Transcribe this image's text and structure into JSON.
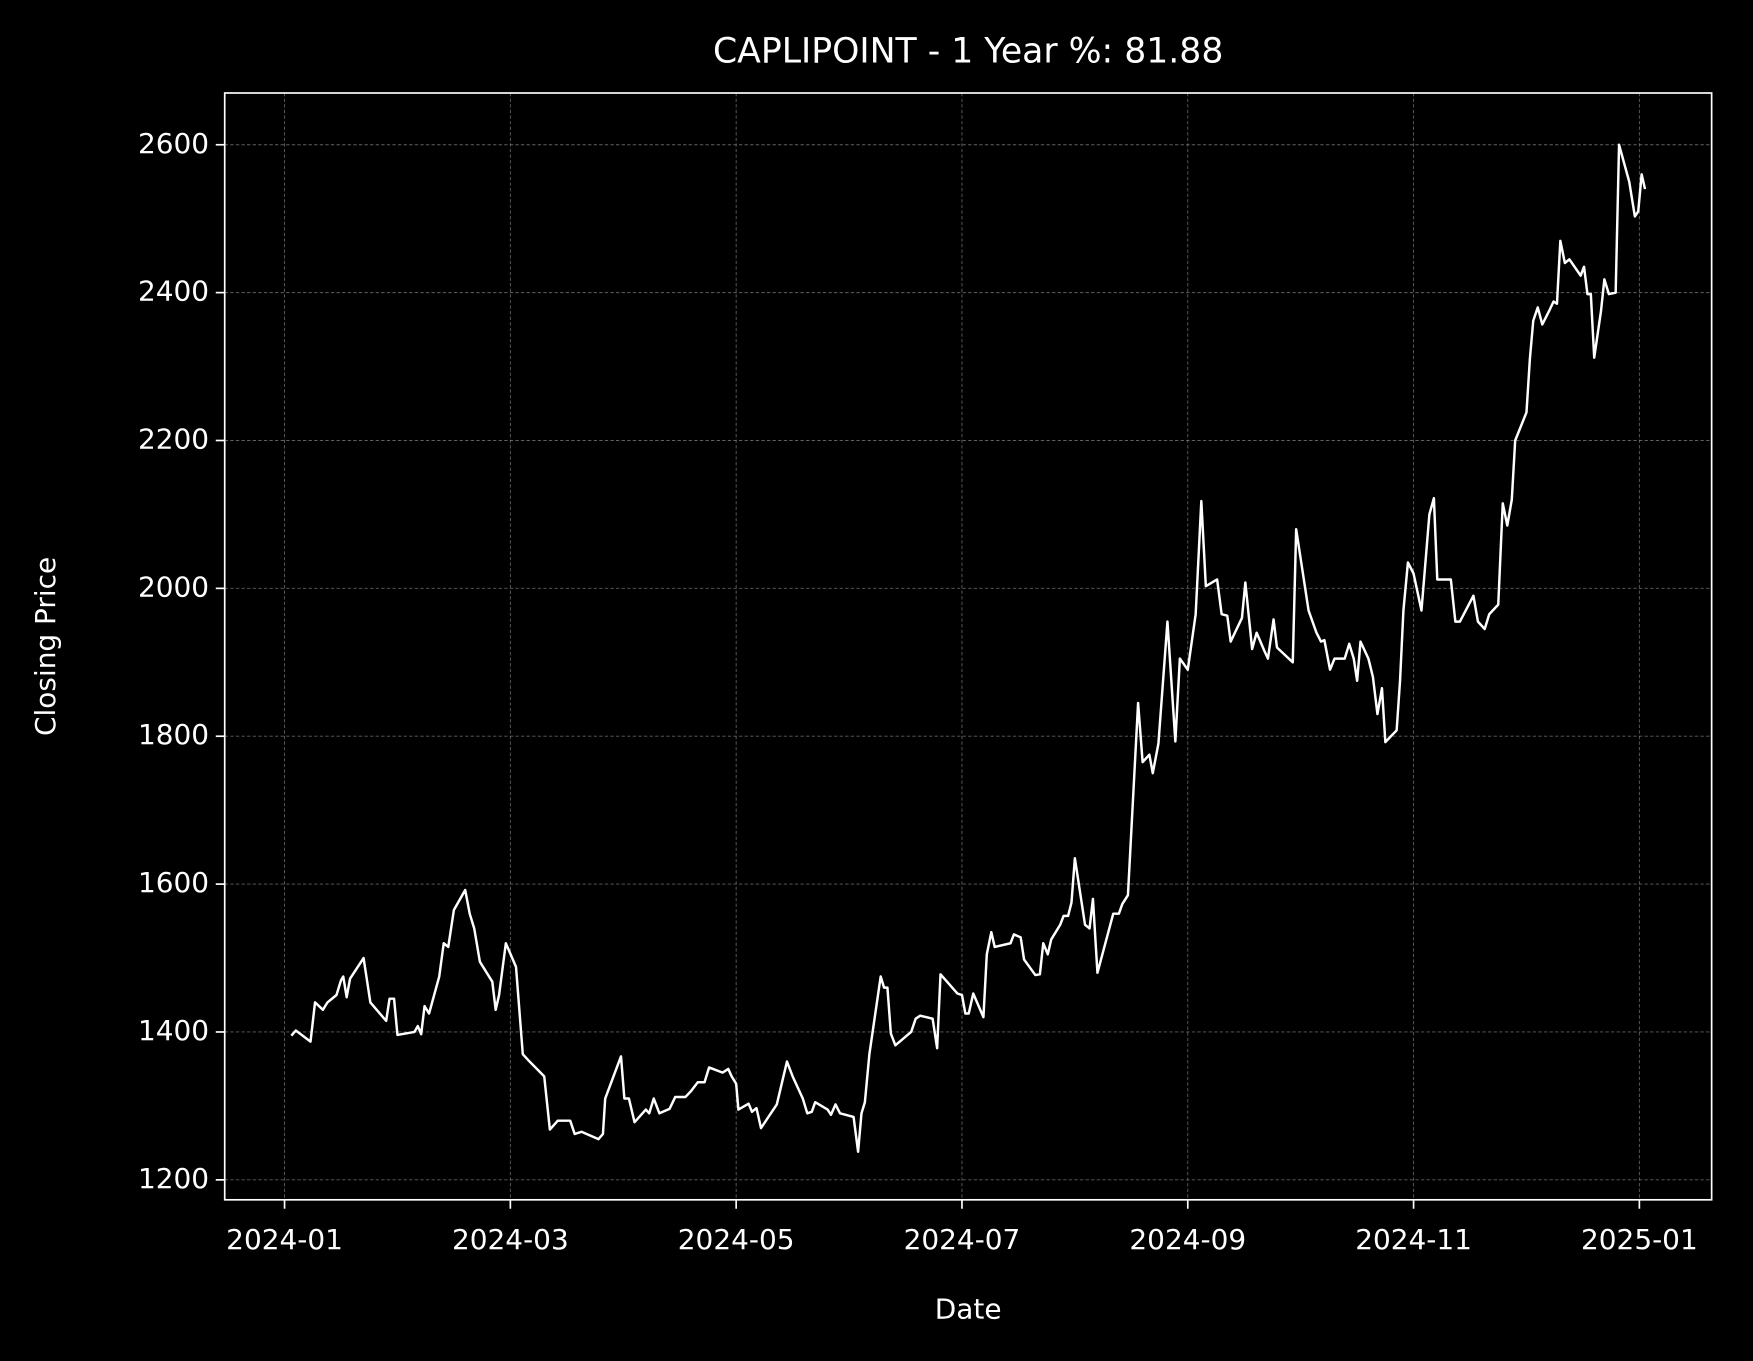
{
  "chart_data": {
    "type": "line",
    "title": "CAPLIPOINT - 1 Year %: 81.88",
    "x_label": "Date",
    "y_label": "Closing Price",
    "grid": true,
    "background": "#000000",
    "color": "#ffffff",
    "xlim": [
      -0.53,
      12.64
    ],
    "ylim": [
      1173,
      2670
    ],
    "xticks": [
      {
        "value": 0,
        "label": "2024-01"
      },
      {
        "value": 2,
        "label": "2024-03"
      },
      {
        "value": 4,
        "label": "2024-05"
      },
      {
        "value": 6,
        "label": "2024-07"
      },
      {
        "value": 8,
        "label": "2024-09"
      },
      {
        "value": 10,
        "label": "2024-11"
      },
      {
        "value": 12,
        "label": "2025-01"
      }
    ],
    "yticks": [
      1200,
      1400,
      1600,
      1800,
      2000,
      2200,
      2400,
      2600
    ],
    "x": [
      0.06,
      0.1,
      0.23,
      0.27,
      0.34,
      0.38,
      0.46,
      0.5,
      0.52,
      0.55,
      0.58,
      0.7,
      0.76,
      0.9,
      0.93,
      0.97,
      1.0,
      1.15,
      1.18,
      1.21,
      1.24,
      1.28,
      1.37,
      1.41,
      1.45,
      1.5,
      1.6,
      1.64,
      1.68,
      1.73,
      1.84,
      1.87,
      1.9,
      1.96,
      2.05,
      2.11,
      2.17,
      2.3,
      2.35,
      2.42,
      2.53,
      2.57,
      2.63,
      2.78,
      2.82,
      2.84,
      2.98,
      3.01,
      3.05,
      3.1,
      3.2,
      3.23,
      3.27,
      3.32,
      3.41,
      3.46,
      3.55,
      3.6,
      3.66,
      3.72,
      3.76,
      3.88,
      3.93,
      3.96,
      4.0,
      4.02,
      4.11,
      4.14,
      4.18,
      4.22,
      4.36,
      4.45,
      4.5,
      4.59,
      4.63,
      4.67,
      4.7,
      4.81,
      4.84,
      4.88,
      4.92,
      5.04,
      5.08,
      5.11,
      5.14,
      5.18,
      5.28,
      5.31,
      5.34,
      5.37,
      5.41,
      5.55,
      5.59,
      5.63,
      5.74,
      5.78,
      5.81,
      5.96,
      6.0,
      6.03,
      6.06,
      6.1,
      6.19,
      6.22,
      6.26,
      6.29,
      6.43,
      6.46,
      6.52,
      6.55,
      6.65,
      6.69,
      6.72,
      6.76,
      6.79,
      6.87,
      6.9,
      6.94,
      6.97,
      7.0,
      7.09,
      7.13,
      7.16,
      7.2,
      7.34,
      7.39,
      7.42,
      7.47,
      7.56,
      7.6,
      7.66,
      7.69,
      7.74,
      7.82,
      7.89,
      7.93,
      8.0,
      8.07,
      8.12,
      8.16,
      8.26,
      8.3,
      8.35,
      8.38,
      8.48,
      8.51,
      8.57,
      8.61,
      8.68,
      8.71,
      8.76,
      8.79,
      8.93,
      8.96,
      9.07,
      9.14,
      9.18,
      9.21,
      9.26,
      9.3,
      9.39,
      9.43,
      9.47,
      9.5,
      9.53,
      9.6,
      9.64,
      9.68,
      9.72,
      9.75,
      9.85,
      9.88,
      9.91,
      9.95,
      10.0,
      10.07,
      10.14,
      10.18,
      10.21,
      10.33,
      10.37,
      10.41,
      10.53,
      10.57,
      10.63,
      10.67,
      10.75,
      10.79,
      10.83,
      10.87,
      10.9,
      11.0,
      11.03,
      11.06,
      11.1,
      11.14,
      11.2,
      11.24,
      11.27,
      11.3,
      11.34,
      11.38,
      11.48,
      11.51,
      11.54,
      11.57,
      11.6,
      11.66,
      11.69,
      11.73,
      11.79,
      11.82,
      11.91,
      11.96,
      11.99,
      12.02,
      12.05
    ],
    "values": [
      1395,
      1402,
      1387,
      1440,
      1430,
      1440,
      1450,
      1470,
      1475,
      1447,
      1472,
      1500,
      1440,
      1415,
      1445,
      1445,
      1396,
      1400,
      1408,
      1397,
      1435,
      1425,
      1475,
      1520,
      1515,
      1565,
      1592,
      1560,
      1540,
      1495,
      1468,
      1430,
      1450,
      1520,
      1488,
      1370,
      1360,
      1340,
      1268,
      1280,
      1280,
      1262,
      1265,
      1255,
      1262,
      1310,
      1367,
      1310,
      1310,
      1278,
      1295,
      1290,
      1310,
      1290,
      1296,
      1312,
      1312,
      1320,
      1332,
      1332,
      1352,
      1345,
      1350,
      1340,
      1330,
      1295,
      1303,
      1292,
      1297,
      1270,
      1302,
      1360,
      1340,
      1310,
      1290,
      1292,
      1305,
      1295,
      1288,
      1302,
      1290,
      1285,
      1238,
      1290,
      1305,
      1370,
      1475,
      1460,
      1460,
      1398,
      1382,
      1400,
      1418,
      1422,
      1418,
      1378,
      1478,
      1452,
      1450,
      1425,
      1425,
      1452,
      1420,
      1505,
      1535,
      1515,
      1520,
      1532,
      1528,
      1498,
      1477,
      1478,
      1520,
      1505,
      1525,
      1545,
      1557,
      1557,
      1575,
      1635,
      1545,
      1540,
      1580,
      1480,
      1560,
      1560,
      1573,
      1585,
      1845,
      1765,
      1775,
      1750,
      1790,
      1955,
      1793,
      1905,
      1890,
      1965,
      2118,
      2003,
      2012,
      1965,
      1963,
      1928,
      1960,
      2008,
      1918,
      1940,
      1915,
      1905,
      1958,
      1920,
      1900,
      2080,
      1970,
      1940,
      1928,
      1930,
      1890,
      1905,
      1905,
      1925,
      1905,
      1875,
      1928,
      1905,
      1880,
      1830,
      1865,
      1792,
      1808,
      1875,
      1970,
      2035,
      2020,
      1970,
      2100,
      2122,
      2012,
      2012,
      1955,
      1955,
      1990,
      1955,
      1945,
      1965,
      1978,
      2115,
      2085,
      2120,
      2200,
      2238,
      2310,
      2362,
      2380,
      2357,
      2375,
      2388,
      2385,
      2470,
      2440,
      2445,
      2423,
      2435,
      2398,
      2398,
      2312,
      2375,
      2418,
      2398,
      2400,
      2600,
      2550,
      2503,
      2510,
      2560,
      2540
    ]
  }
}
